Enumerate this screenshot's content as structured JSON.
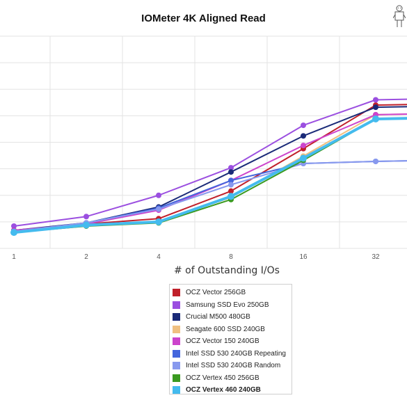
{
  "chart_data": {
    "type": "line",
    "title": "IOMeter 4K Aligned Read",
    "xlabel": "# of Outstanding I/Os",
    "ylabel": "",
    "categories": [
      "1",
      "2",
      "4",
      "8",
      "16",
      "32"
    ],
    "ylim": [
      0,
      100
    ],
    "grid": true,
    "legend_position": "bottom",
    "series": [
      {
        "name": "OCZ Vector 256GB",
        "color": "#c0202a",
        "values": [
          8.5,
          11.5,
          14,
          27,
          47,
          67.5
        ]
      },
      {
        "name": "Samsung SSD Evo 250GB",
        "color": "#9b4fe0",
        "values": [
          10.5,
          15,
          25,
          38,
          58,
          70
        ]
      },
      {
        "name": "Crucial M500 480GB",
        "color": "#1a2a78",
        "values": [
          8.5,
          12,
          19.5,
          36,
          53,
          66.5
        ]
      },
      {
        "name": "Seagate 600 SSD 240GB",
        "color": "#f0c080",
        "values": [
          7.5,
          10.5,
          12.5,
          24,
          43.5,
          63
        ]
      },
      {
        "name": "OCZ Vector 150 240GB",
        "color": "#cc44cc",
        "values": [
          8.5,
          11.5,
          18,
          32,
          48.5,
          63
        ]
      },
      {
        "name": "Intel SSD 530 240GB Repeating",
        "color": "#4466dd",
        "values": [
          8,
          12,
          19,
          32,
          40,
          41
        ]
      },
      {
        "name": "Intel SSD 530 240GB Random",
        "color": "#8899ee",
        "values": [
          8,
          12,
          18.5,
          30,
          40,
          41
        ]
      },
      {
        "name": "OCZ Vertex 450 256GB",
        "color": "#3a9a20",
        "values": [
          7.5,
          10.5,
          12,
          23,
          41.5,
          61
        ]
      },
      {
        "name": "OCZ Vertex 460 240GB",
        "color": "#44bbee",
        "values": [
          7.5,
          11,
          12.5,
          24.5,
          42.5,
          61
        ]
      }
    ]
  },
  "legend": {
    "bold_item": "OCZ Vertex 460 240GB"
  },
  "icons": {
    "corner": "person-icon"
  }
}
